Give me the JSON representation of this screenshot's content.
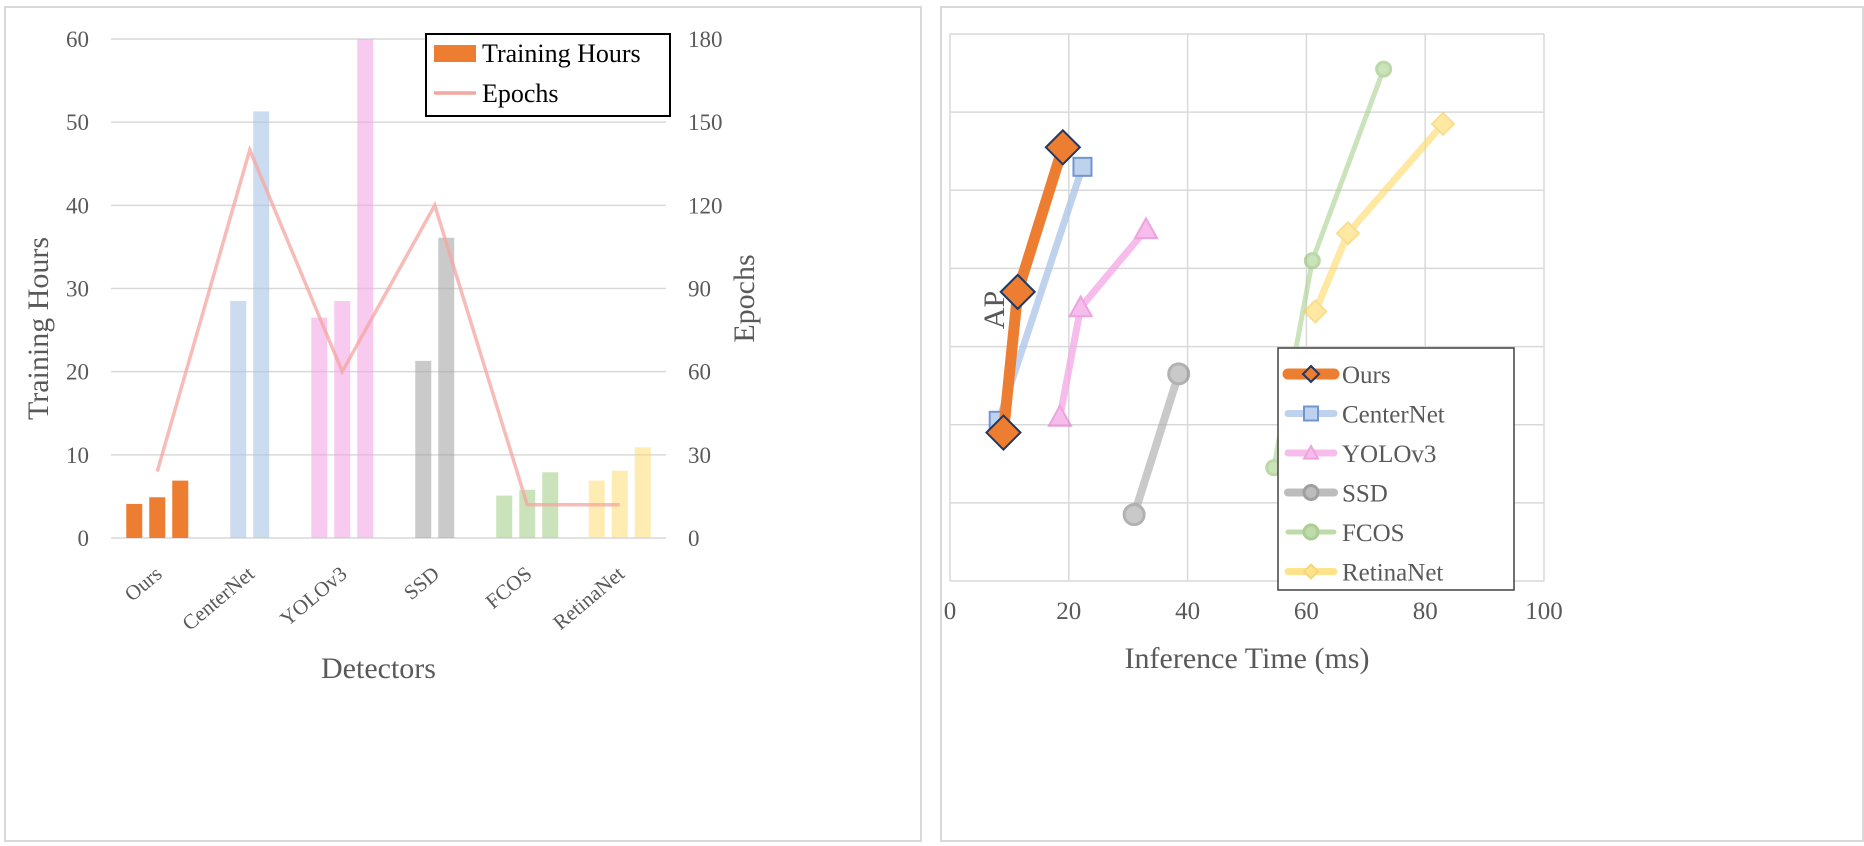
{
  "chart_data": [
    {
      "type": "bar",
      "xlabel": "Detectors",
      "ylabel": "Training Hours",
      "y2label": "Epochs",
      "ylim": [
        0,
        60
      ],
      "y2lim": [
        0,
        180
      ],
      "yticks": [
        0,
        10,
        20,
        30,
        40,
        50,
        60
      ],
      "y2ticks": [
        0,
        30,
        60,
        90,
        120,
        150,
        180
      ],
      "grid": "horizontal",
      "legend_position": "top-right",
      "legend": [
        "Training Hours",
        "Epochs"
      ],
      "categories": [
        "Ours",
        "CenterNet",
        "YOLOv3",
        "SSD",
        "FCOS",
        "RetinaNet"
      ],
      "bars": [
        {
          "category": "Ours",
          "color": "#ed7d31",
          "opacity": 1.0,
          "values": [
            4.1,
            4.9,
            6.9
          ]
        },
        {
          "category": "CenterNet",
          "color": "#a9c4e8",
          "opacity": 0.6,
          "values": [
            28.5,
            51.3
          ]
        },
        {
          "category": "YOLOv3",
          "color": "#f3a6e6",
          "opacity": 0.6,
          "values": [
            26.5,
            28.5,
            60
          ]
        },
        {
          "category": "SSD",
          "color": "#a6a6a6",
          "opacity": 0.6,
          "values": [
            21.3,
            36.1
          ]
        },
        {
          "category": "FCOS",
          "color": "#a9d18e",
          "opacity": 0.6,
          "values": [
            5.1,
            5.8,
            7.9
          ]
        },
        {
          "category": "RetinaNet",
          "color": "#ffd966",
          "opacity": 0.5,
          "values": [
            6.9,
            8.1,
            10.9
          ]
        }
      ],
      "epochs_line": {
        "name": "Epochs",
        "color": "#f4a6a0",
        "points": [
          {
            "category": "Ours",
            "epochs": 24
          },
          {
            "category": "CenterNet",
            "epochs": 140
          },
          {
            "category": "YOLOv3",
            "epochs": 60
          },
          {
            "category": "SSD",
            "epochs": 120
          },
          {
            "category": "FCOS",
            "epochs": 12
          },
          {
            "category": "RetinaNet",
            "epochs": 12
          }
        ]
      }
    },
    {
      "type": "line",
      "xlabel": "Inference Time (ms)",
      "ylabel": "AP",
      "xlim": [
        0,
        100
      ],
      "ylim": [
        24,
        38
      ],
      "xticks": [
        0,
        20,
        40,
        60,
        80,
        100
      ],
      "yticks": [
        24,
        26,
        28,
        30,
        32,
        34,
        36,
        38
      ],
      "grid": "both",
      "legend_position": "bottom-right",
      "series": [
        {
          "name": "Ours",
          "color": "#ed7d31",
          "marker": "diamond",
          "opacity": 1.0,
          "x": [
            9.0,
            11.4,
            19.0
          ],
          "y": [
            27.8,
            31.4,
            35.1
          ]
        },
        {
          "name": "CenterNet",
          "color": "#a9c4e8",
          "marker": "square",
          "opacity": 0.75,
          "x": [
            8.2,
            22.3
          ],
          "y": [
            28.1,
            34.6
          ]
        },
        {
          "name": "YOLOv3",
          "color": "#f3a6e6",
          "marker": "triangle",
          "opacity": 0.75,
          "x": [
            18.5,
            22.0,
            33.0
          ],
          "y": [
            28.2,
            31.0,
            33.0
          ]
        },
        {
          "name": "SSD",
          "color": "#a6a6a6",
          "marker": "circle",
          "opacity": 0.6,
          "x": [
            31.0,
            38.5
          ],
          "y": [
            25.7,
            29.3
          ]
        },
        {
          "name": "FCOS",
          "color": "#a9d18e",
          "marker": "circle",
          "opacity": 0.6,
          "x": [
            54.5,
            61.0,
            73.0
          ],
          "y": [
            26.9,
            32.2,
            37.1
          ]
        },
        {
          "name": "RetinaNet",
          "color": "#ffd966",
          "marker": "diamond",
          "opacity": 0.6,
          "x": [
            61.5,
            67.0,
            83.0
          ],
          "y": [
            30.9,
            32.9,
            35.7
          ]
        }
      ]
    }
  ]
}
